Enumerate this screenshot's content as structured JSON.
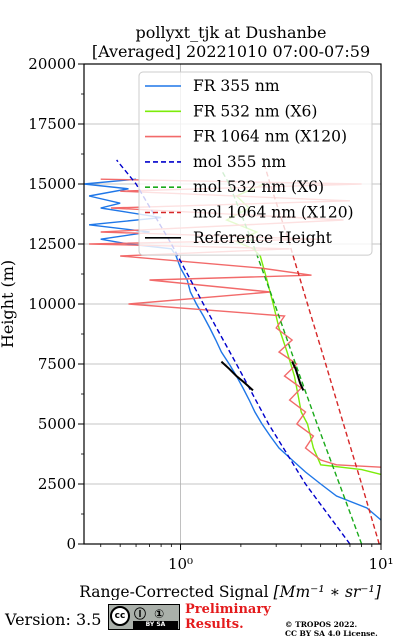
{
  "chart_data": {
    "type": "line",
    "title_line1": "pollyxt_tjk at Dushanbe",
    "title_line2": "[Averaged] 20221010 07:00-07:59",
    "xlabel_prefix": "Range-Corrected Signal ",
    "xlabel_math": "[Mm⁻¹ ∗ sr⁻¹]",
    "ylabel": "Height (m)",
    "xscale": "log",
    "xlim": [
      0.33,
      10
    ],
    "ylim": [
      0,
      20000
    ],
    "x_ticks": [
      {
        "value": 1,
        "label": "10⁰"
      },
      {
        "value": 10,
        "label": "10¹"
      }
    ],
    "y_ticks": [
      0,
      2500,
      5000,
      7500,
      10000,
      12500,
      15000,
      17500,
      20000
    ],
    "grid": true,
    "legend_position": "top-right",
    "series": [
      {
        "name": "FR 355 nm",
        "color": "#1f77e8",
        "style": "solid",
        "points": [
          [
            10.5,
            1000
          ],
          [
            8.5,
            1500
          ],
          [
            6.0,
            2000
          ],
          [
            5.0,
            2500
          ],
          [
            4.2,
            3000
          ],
          [
            3.6,
            3500
          ],
          [
            3.1,
            4000
          ],
          [
            2.8,
            4500
          ],
          [
            2.55,
            5000
          ],
          [
            2.35,
            5500
          ],
          [
            2.2,
            6000
          ],
          [
            2.05,
            6500
          ],
          [
            1.9,
            7000
          ],
          [
            1.75,
            7500
          ],
          [
            1.6,
            8000
          ],
          [
            1.5,
            8500
          ],
          [
            1.4,
            9000
          ],
          [
            1.3,
            9500
          ],
          [
            1.2,
            10000
          ],
          [
            1.12,
            10500
          ],
          [
            1.08,
            11000
          ],
          [
            1.0,
            11500
          ],
          [
            0.95,
            12000
          ],
          [
            0.9,
            12300
          ],
          [
            0.55,
            12500
          ],
          [
            0.4,
            12700
          ],
          [
            0.7,
            13000
          ],
          [
            0.35,
            13300
          ],
          [
            0.8,
            13600
          ],
          [
            0.4,
            14000
          ],
          [
            0.5,
            14200
          ],
          [
            0.35,
            14500
          ],
          [
            0.55,
            14800
          ],
          [
            0.33,
            15000
          ],
          [
            0.6,
            15200
          ]
        ]
      },
      {
        "name": "FR 532 nm (X6)",
        "color": "#7cec0a",
        "style": "solid",
        "points": [
          [
            10,
            2900
          ],
          [
            8.0,
            3100
          ],
          [
            5.0,
            3300
          ],
          [
            4.6,
            4000
          ],
          [
            4.3,
            5000
          ],
          [
            4.0,
            5500
          ],
          [
            3.9,
            6000
          ],
          [
            3.7,
            7000
          ],
          [
            3.4,
            8000
          ],
          [
            3.1,
            9000
          ],
          [
            2.9,
            10000
          ],
          [
            2.7,
            11000
          ],
          [
            2.5,
            12000
          ],
          [
            2.3,
            12300
          ],
          [
            1.9,
            12600
          ],
          [
            2.4,
            13000
          ],
          [
            1.7,
            13500
          ],
          [
            2.2,
            14000
          ],
          [
            1.9,
            14500
          ],
          [
            2.6,
            15000
          ]
        ]
      },
      {
        "name": "FR 1064 nm (X120)",
        "color": "#f26a6a",
        "style": "solid",
        "points": [
          [
            10,
            3200
          ],
          [
            6.0,
            3300
          ],
          [
            5.0,
            3500
          ],
          [
            4.2,
            4000
          ],
          [
            4.6,
            4500
          ],
          [
            3.8,
            5000
          ],
          [
            4.2,
            5500
          ],
          [
            3.5,
            6000
          ],
          [
            4.0,
            6500
          ],
          [
            3.3,
            7000
          ],
          [
            3.8,
            7500
          ],
          [
            3.1,
            8000
          ],
          [
            3.6,
            8500
          ],
          [
            3.0,
            9000
          ],
          [
            3.3,
            9500
          ],
          [
            0.55,
            10000
          ],
          [
            2.8,
            10500
          ],
          [
            0.7,
            11000
          ],
          [
            4.5,
            11200
          ],
          [
            2.5,
            11500
          ],
          [
            0.5,
            12000
          ],
          [
            3.5,
            12300
          ],
          [
            0.35,
            12500
          ],
          [
            5.0,
            12700
          ],
          [
            0.4,
            13000
          ],
          [
            6.5,
            13500
          ],
          [
            0.45,
            14000
          ],
          [
            7.0,
            14300
          ],
          [
            0.5,
            14700
          ],
          [
            8.0,
            15000
          ],
          [
            0.4,
            15200
          ]
        ]
      },
      {
        "name": "mol 355 nm",
        "color": "#0000cc",
        "style": "dashed",
        "points": [
          [
            7.0,
            0
          ],
          [
            4.2,
            2500
          ],
          [
            2.75,
            5000
          ],
          [
            1.9,
            7500
          ],
          [
            1.3,
            10000
          ],
          [
            0.9,
            12500
          ],
          [
            0.6,
            15000
          ],
          [
            0.48,
            16000
          ]
        ]
      },
      {
        "name": "mol 532 nm (X6)",
        "color": "#1aaa1a",
        "style": "dashed",
        "points": [
          [
            8.0,
            0
          ],
          [
            6.2,
            2500
          ],
          [
            4.8,
            5000
          ],
          [
            3.75,
            7500
          ],
          [
            2.95,
            10000
          ],
          [
            2.3,
            12500
          ],
          [
            1.75,
            15000
          ],
          [
            1.62,
            15500
          ]
        ]
      },
      {
        "name": "mol 1064 nm (X120)",
        "color": "#d62728",
        "style": "dashed",
        "points": [
          [
            9.8,
            0
          ],
          [
            8.0,
            2500
          ],
          [
            6.5,
            5000
          ],
          [
            5.3,
            7500
          ],
          [
            4.3,
            10000
          ],
          [
            3.5,
            12500
          ],
          [
            2.8,
            15000
          ],
          [
            2.58,
            16000
          ]
        ]
      },
      {
        "name": "Reference Height",
        "color": "#000000",
        "style": "solid",
        "points": [
          [
            1.6,
            7600
          ],
          [
            1.75,
            7300
          ],
          [
            1.9,
            7000
          ],
          [
            2.1,
            6700
          ],
          [
            2.3,
            6400
          ],
          [
            3.6,
            7600
          ],
          [
            3.75,
            7300
          ],
          [
            3.85,
            7000
          ],
          [
            3.95,
            6700
          ],
          [
            4.1,
            6400
          ]
        ]
      }
    ]
  },
  "footer": {
    "version": "Version: 3.5",
    "cc_icons": "Ⓘ ①",
    "cc_bottom": "BY   SA",
    "cc_logo": "cc",
    "prelim_line1": "Preliminary",
    "prelim_line2": "Results.",
    "tropos_line1": "© TROPOS 2022.",
    "tropos_line2": "CC BY SA 4.0 License."
  }
}
